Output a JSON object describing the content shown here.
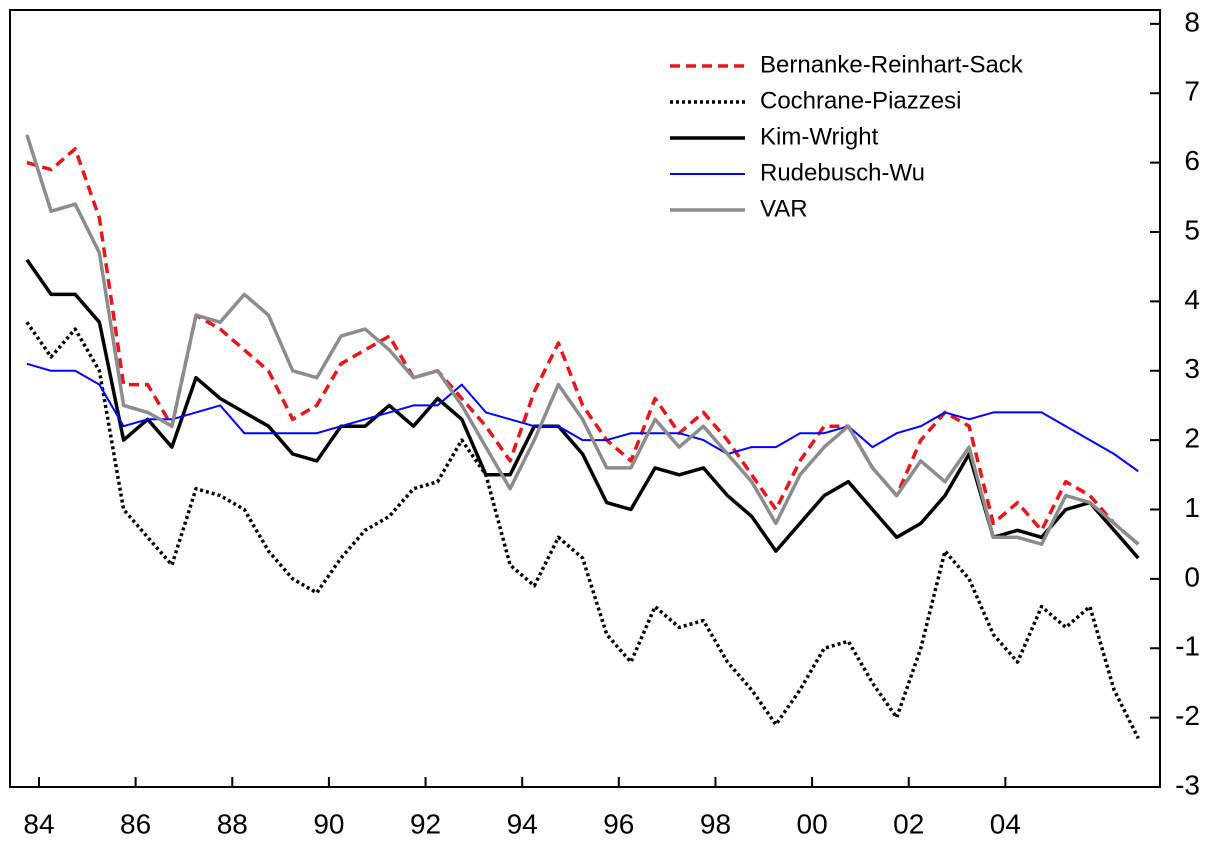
{
  "chart_data": {
    "type": "line",
    "x": [
      1984.25,
      1984.75,
      1985.25,
      1985.75,
      1986.25,
      1986.75,
      1987.25,
      1987.75,
      1988.25,
      1988.75,
      1989.25,
      1989.75,
      1990.25,
      1990.75,
      1991.25,
      1991.75,
      1992.25,
      1992.75,
      1993.25,
      1993.75,
      1994.25,
      1994.75,
      1995.25,
      1995.75,
      1996.25,
      1996.75,
      1997.25,
      1997.75,
      1998.25,
      1998.75,
      1999.25,
      1999.75,
      2000.25,
      2000.75,
      2001.25,
      2001.75,
      2002.25,
      2002.75,
      2003.25,
      2003.75,
      2004.25,
      2004.75,
      2005.25,
      2005.75,
      2006.25,
      2006.75,
      2007.25
    ],
    "series": [
      {
        "name": "Bernanke-Reinhart-Sack",
        "color": "#e8161b",
        "linestyle": "dashed",
        "linewidth": 3.5,
        "values": [
          6.0,
          5.9,
          6.2,
          5.2,
          2.8,
          2.8,
          2.2,
          3.8,
          3.6,
          3.3,
          3.0,
          2.3,
          2.5,
          3.1,
          3.3,
          3.5,
          2.9,
          3.0,
          2.6,
          2.2,
          1.7,
          2.7,
          3.4,
          2.5,
          2.0,
          1.7,
          2.6,
          2.1,
          2.4,
          2.0,
          1.5,
          1.0,
          1.7,
          2.2,
          2.2,
          1.6,
          1.2,
          2.0,
          2.4,
          2.2,
          0.8,
          1.1,
          0.7,
          1.4,
          1.2,
          0.8,
          0.5
        ]
      },
      {
        "name": "Cochrane-Piazzesi",
        "color": "#000000",
        "linestyle": "dotted",
        "linewidth": 3.5,
        "values": [
          3.7,
          3.2,
          3.6,
          3.0,
          1.0,
          0.6,
          0.2,
          1.3,
          1.2,
          1.0,
          0.4,
          0.0,
          -0.2,
          0.3,
          0.7,
          0.9,
          1.3,
          1.4,
          2.0,
          1.5,
          0.2,
          -0.1,
          0.6,
          0.3,
          -0.8,
          -1.2,
          -0.4,
          -0.7,
          -0.6,
          -1.2,
          -1.6,
          -2.1,
          -1.6,
          -1.0,
          -0.9,
          -1.5,
          -2.0,
          -1.0,
          0.4,
          0.0,
          -0.8,
          -1.2,
          -0.4,
          -0.7,
          -0.4,
          -1.6,
          -2.3
        ]
      },
      {
        "name": "Kim-Wright",
        "color": "#000000",
        "linestyle": "solid",
        "linewidth": 3.5,
        "values": [
          4.6,
          4.1,
          4.1,
          3.7,
          2.0,
          2.3,
          1.9,
          2.9,
          2.6,
          2.4,
          2.2,
          1.8,
          1.7,
          2.2,
          2.2,
          2.5,
          2.2,
          2.6,
          2.3,
          1.5,
          1.5,
          2.2,
          2.2,
          1.8,
          1.1,
          1.0,
          1.6,
          1.5,
          1.6,
          1.2,
          0.9,
          0.4,
          0.8,
          1.2,
          1.4,
          1.0,
          0.6,
          0.8,
          1.2,
          1.8,
          0.6,
          0.7,
          0.6,
          1.0,
          1.1,
          0.7,
          0.3
        ]
      },
      {
        "name": "Rudebusch-Wu",
        "color": "#0000ff",
        "linestyle": "solid",
        "linewidth": 2,
        "values": [
          3.1,
          3.0,
          3.0,
          2.8,
          2.2,
          2.3,
          2.3,
          2.4,
          2.5,
          2.1,
          2.1,
          2.1,
          2.1,
          2.2,
          2.3,
          2.4,
          2.5,
          2.5,
          2.8,
          2.4,
          2.3,
          2.2,
          2.2,
          2.0,
          2.0,
          2.1,
          2.1,
          2.1,
          2.0,
          1.8,
          1.9,
          1.9,
          2.1,
          2.1,
          2.2,
          1.9,
          2.1,
          2.2,
          2.4,
          2.3,
          2.4,
          2.4,
          2.4,
          2.2,
          2.0,
          1.8,
          1.55
        ]
      },
      {
        "name": "VAR",
        "color": "#8c8c8c",
        "linestyle": "solid",
        "linewidth": 3.5,
        "values": [
          6.4,
          5.3,
          5.4,
          4.7,
          2.5,
          2.4,
          2.2,
          3.8,
          3.7,
          4.1,
          3.8,
          3.0,
          2.9,
          3.5,
          3.6,
          3.3,
          2.9,
          3.0,
          2.5,
          1.9,
          1.3,
          2.0,
          2.8,
          2.3,
          1.6,
          1.6,
          2.3,
          1.9,
          2.2,
          1.8,
          1.4,
          0.8,
          1.5,
          1.9,
          2.2,
          1.6,
          1.2,
          1.7,
          1.4,
          1.9,
          0.6,
          0.6,
          0.5,
          1.2,
          1.1,
          0.8,
          0.5
        ]
      }
    ],
    "xlim": [
      1983.9,
      2007.7
    ],
    "xticks": [
      {
        "value": 1984.5,
        "label": "84"
      },
      {
        "value": 1986.5,
        "label": "86"
      },
      {
        "value": 1988.5,
        "label": "88"
      },
      {
        "value": 1990.5,
        "label": "90"
      },
      {
        "value": 1992.5,
        "label": "92"
      },
      {
        "value": 1994.5,
        "label": "94"
      },
      {
        "value": 1996.5,
        "label": "96"
      },
      {
        "value": 1998.5,
        "label": "98"
      },
      {
        "value": 2000.5,
        "label": "00"
      },
      {
        "value": 2002.5,
        "label": "02"
      },
      {
        "value": 2004.5,
        "label": "04"
      }
    ],
    "ylim": [
      -3,
      8.2
    ],
    "yticks": [
      -3,
      -2,
      -1,
      0,
      1,
      2,
      3,
      4,
      5,
      6,
      7,
      8
    ],
    "legend": "upper right"
  }
}
